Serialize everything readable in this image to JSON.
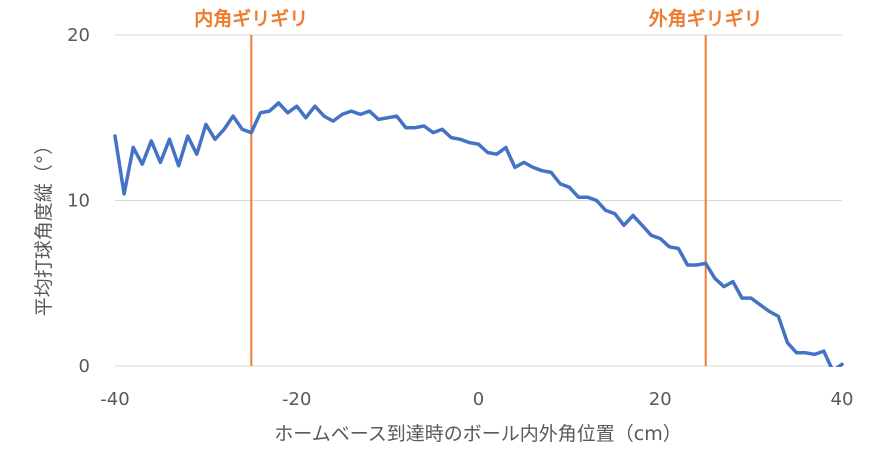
{
  "chart_data": {
    "type": "line",
    "xlabel": "ホームベース到達時のボール内外角位置（cm）",
    "ylabel": "平均打球角度縦（°）",
    "xlim": [
      -40,
      40
    ],
    "ylim": [
      0,
      20
    ],
    "xticks": [
      -40,
      -20,
      0,
      20,
      40
    ],
    "yticks": [
      0,
      10,
      20
    ],
    "grid": true,
    "colors": {
      "series": "#4472C4",
      "annotation": "#ED7D31",
      "grid": "#D9D9D9",
      "text": "#595959"
    },
    "annotations": [
      {
        "label": "内角ギリギリ",
        "x": -25
      },
      {
        "label": "外角ギリギリ",
        "x": 25
      }
    ],
    "series": [
      {
        "x": [
          -40,
          -39,
          -38,
          -37,
          -36,
          -35,
          -34,
          -33,
          -32,
          -31,
          -30,
          -29,
          -28,
          -27,
          -26,
          -25,
          -24,
          -23,
          -22,
          -21,
          -20,
          -19,
          -18,
          -17,
          -16,
          -15,
          -14,
          -13,
          -12,
          -11,
          -10,
          -9,
          -8,
          -7,
          -6,
          -5,
          -4,
          -3,
          -2,
          -1,
          0,
          1,
          2,
          3,
          4,
          5,
          6,
          7,
          8,
          9,
          10,
          11,
          12,
          13,
          14,
          15,
          16,
          17,
          18,
          19,
          20,
          21,
          22,
          23,
          24,
          25,
          26,
          27,
          28,
          29,
          30,
          31,
          32,
          33,
          34,
          35,
          36,
          37,
          38,
          39,
          40
        ],
        "values": [
          13.9,
          10.4,
          13.2,
          12.2,
          13.6,
          12.3,
          13.7,
          12.1,
          13.9,
          12.8,
          14.6,
          13.7,
          14.3,
          15.1,
          14.3,
          14.1,
          15.3,
          15.4,
          15.9,
          15.3,
          15.7,
          15.0,
          15.7,
          15.1,
          14.8,
          15.2,
          15.4,
          15.2,
          15.4,
          14.9,
          15.0,
          15.1,
          14.4,
          14.4,
          14.5,
          14.1,
          14.3,
          13.8,
          13.7,
          13.5,
          13.4,
          12.9,
          12.8,
          13.2,
          12.0,
          12.3,
          12.0,
          11.8,
          11.7,
          11.0,
          10.8,
          10.2,
          10.2,
          10.0,
          9.4,
          9.2,
          8.5,
          9.1,
          8.5,
          7.9,
          7.7,
          7.2,
          7.1,
          6.1,
          6.1,
          6.2,
          5.3,
          4.8,
          5.1,
          4.1,
          4.1,
          3.7,
          3.3,
          3.0,
          1.4,
          0.8,
          0.8,
          0.7,
          0.9,
          -0.3,
          0.1
        ]
      }
    ]
  }
}
